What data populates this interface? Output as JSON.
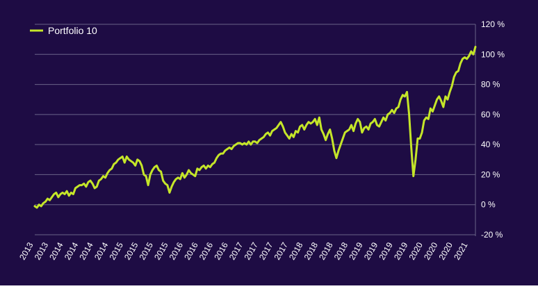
{
  "colors": {
    "background": "#1e0c44",
    "line": "#c5e629",
    "grid": "#6b6489",
    "text": "#ffffff"
  },
  "chart_data": {
    "type": "line",
    "legend": {
      "position": "top-left",
      "entries": [
        "Portfolio 10"
      ]
    },
    "grid": true,
    "yaxis_side": "right",
    "ylim": [
      -20,
      120
    ],
    "y_ticks": [
      -20,
      0,
      20,
      40,
      60,
      80,
      100,
      120
    ],
    "y_tick_labels": [
      "-20 %",
      "0 %",
      "20 %",
      "40 %",
      "60 %",
      "80 %",
      "100 %",
      "120 %"
    ],
    "x_tick_labels": [
      "2013",
      "2013",
      "2014",
      "2014",
      "2014",
      "2014",
      "2015",
      "2015",
      "2015",
      "2015",
      "2016",
      "2016",
      "2016",
      "2016",
      "2017",
      "2017",
      "2017",
      "2017",
      "2018",
      "2018",
      "2018",
      "2018",
      "2019",
      "2019",
      "2019",
      "2019",
      "2020",
      "2020",
      "2020",
      "2021"
    ],
    "series": [
      {
        "name": "Portfolio 10",
        "values": [
          -1,
          -2,
          0,
          -1,
          1,
          2,
          4,
          3,
          5,
          7,
          8,
          5,
          7,
          8,
          7,
          9,
          6,
          8,
          7,
          11,
          12,
          13,
          13,
          14,
          12,
          15,
          16,
          14,
          11,
          12,
          16,
          17,
          19,
          18,
          21,
          23,
          24,
          27,
          28,
          30,
          31,
          32,
          28,
          32,
          30,
          29,
          28,
          26,
          30,
          29,
          26,
          20,
          19,
          13,
          20,
          23,
          25,
          26,
          23,
          22,
          16,
          14,
          13,
          8,
          12,
          15,
          17,
          18,
          17,
          21,
          18,
          20,
          23,
          21,
          20,
          19,
          24,
          23,
          25,
          26,
          24,
          26,
          25,
          27,
          28,
          31,
          33,
          34,
          34,
          36,
          37,
          38,
          37,
          39,
          40,
          41,
          41,
          40,
          41,
          40,
          42,
          40,
          42,
          42,
          41,
          43,
          44,
          45,
          47,
          48,
          46,
          49,
          50,
          51,
          53,
          55,
          52,
          48,
          46,
          44,
          47,
          45,
          49,
          48,
          52,
          53,
          50,
          53,
          55,
          54,
          55,
          57,
          53,
          58,
          50,
          47,
          43,
          47,
          50,
          44,
          36,
          31,
          36,
          40,
          44,
          48,
          49,
          50,
          53,
          49,
          54,
          57,
          55,
          48,
          51,
          52,
          50,
          54,
          55,
          57,
          53,
          52,
          55,
          58,
          56,
          60,
          61,
          63,
          61,
          64,
          65,
          70,
          73,
          72,
          75,
          60,
          38,
          19,
          30,
          44,
          44,
          48,
          56,
          58,
          57,
          64,
          62,
          66,
          70,
          72,
          69,
          65,
          72,
          70,
          75,
          79,
          85,
          88,
          89,
          94,
          97,
          98,
          97,
          99,
          102,
          100,
          105
        ]
      }
    ]
  }
}
